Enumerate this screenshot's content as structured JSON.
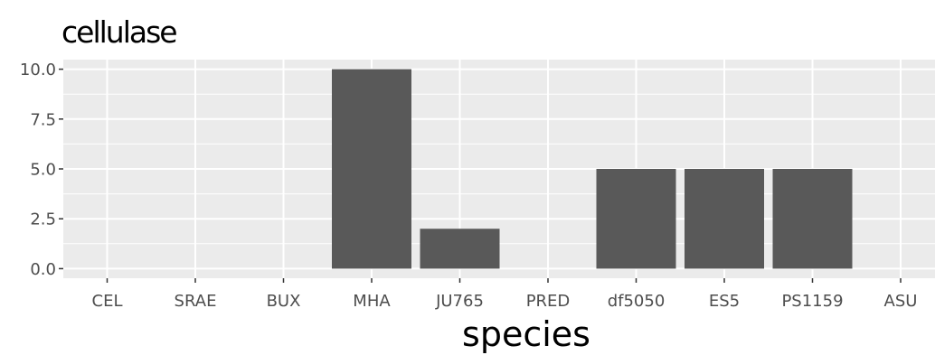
{
  "chart_data": {
    "type": "bar",
    "title": "cellulase",
    "xlabel": "species",
    "ylabel": "",
    "categories": [
      "CEL",
      "SRAE",
      "BUX",
      "MHA",
      "JU765",
      "PRED",
      "df5050",
      "ES5",
      "PS1159",
      "ASU"
    ],
    "values": [
      0,
      0,
      0,
      10,
      2,
      0,
      5,
      5,
      5,
      0
    ],
    "yticks": [
      "0.0",
      "2.5",
      "5.0",
      "7.5",
      "10.0"
    ],
    "ylim": [
      -0.48,
      10.48
    ],
    "grid": true,
    "colors": {
      "panel": "#ebebeb",
      "grid": "#ffffff",
      "bar": "#595959"
    }
  }
}
